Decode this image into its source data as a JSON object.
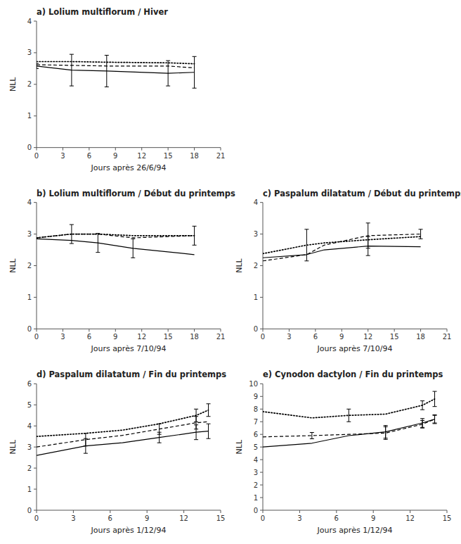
{
  "chart_data": [
    {
      "type": "line",
      "title": "a) Lolium multiflorum / Hiver",
      "xlabel": "Jours après 26/6/94",
      "ylabel": "NLL",
      "xlim": [
        0,
        21
      ],
      "ylim": [
        0,
        4
      ],
      "xticks": [
        0,
        3,
        6,
        9,
        12,
        15,
        18,
        21
      ],
      "yticks": [
        0,
        1,
        2,
        3,
        4
      ],
      "x": [
        0,
        4,
        8,
        15,
        18
      ],
      "series": [
        {
          "values": [
            2.58,
            2.45,
            2.42,
            2.35,
            2.38
          ],
          "errors": [
            0.08,
            0.5,
            0.5,
            0.4,
            0.5
          ],
          "line_style": "solid",
          "color": "#000000"
        },
        {
          "values": [
            2.62,
            2.6,
            2.58,
            2.58,
            2.52
          ],
          "errors": [
            0.0,
            0.0,
            0.0,
            0.0,
            0.0
          ],
          "line_style": "dashed",
          "color": "#000000"
        },
        {
          "values": [
            2.72,
            2.72,
            2.7,
            2.68,
            2.65
          ],
          "errors": [
            0.0,
            0.0,
            0.0,
            0.0,
            0.0
          ],
          "line_style": "dotted",
          "color": "#000000"
        }
      ]
    },
    {
      "type": "line",
      "title": "b) Lolium multiflorum / Début du printemps",
      "xlabel": "Jours après 7/10/94",
      "ylabel": "NLL",
      "xlim": [
        0,
        21
      ],
      "ylim": [
        0,
        4
      ],
      "xticks": [
        0,
        3,
        6,
        9,
        12,
        15,
        18,
        21
      ],
      "yticks": [
        0,
        1,
        2,
        3,
        4
      ],
      "x": [
        0,
        4,
        7,
        11,
        18
      ],
      "series": [
        {
          "values": [
            2.85,
            2.8,
            2.72,
            2.55,
            2.35
          ],
          "errors": [
            0.0,
            0.0,
            0.3,
            0.3,
            0.0
          ],
          "line_style": "solid",
          "color": "#000000"
        },
        {
          "values": [
            2.88,
            3.0,
            3.0,
            2.88,
            2.95
          ],
          "errors": [
            0.0,
            0.3,
            0.0,
            0.0,
            0.3
          ],
          "line_style": "dashed",
          "color": "#000000"
        },
        {
          "values": [
            2.88,
            3.0,
            3.0,
            2.95,
            2.95
          ],
          "errors": [
            0.0,
            0.0,
            0.0,
            0.0,
            0.0
          ],
          "line_style": "dotted",
          "color": "#000000"
        }
      ]
    },
    {
      "type": "line",
      "title": "c) Paspalum dilatatum / Début du printemps",
      "xlabel": "Jours après 7/10/94",
      "ylabel": "NLL",
      "xlim": [
        0,
        21
      ],
      "ylim": [
        0,
        4
      ],
      "xticks": [
        0,
        3,
        6,
        9,
        12,
        15,
        18,
        21
      ],
      "yticks": [
        0,
        1,
        2,
        3,
        4
      ],
      "x": [
        0,
        5,
        7,
        12,
        18
      ],
      "series": [
        {
          "values": [
            2.25,
            2.35,
            2.5,
            2.62,
            2.6
          ],
          "errors": [
            0.0,
            0.0,
            0.0,
            0.3,
            0.0
          ],
          "line_style": "solid",
          "color": "#000000"
        },
        {
          "values": [
            2.15,
            2.35,
            2.65,
            2.95,
            3.0
          ],
          "errors": [
            0.0,
            0.0,
            0.0,
            0.4,
            0.15
          ],
          "line_style": "dashed",
          "color": "#000000"
        },
        {
          "values": [
            2.38,
            2.65,
            2.72,
            2.82,
            2.92
          ],
          "errors": [
            0.0,
            0.5,
            0.0,
            0.0,
            0.0
          ],
          "line_style": "dotted",
          "color": "#000000"
        }
      ]
    },
    {
      "type": "line",
      "title": "d) Paspalum dilatatum / Fin du printemps",
      "xlabel": "Jours après 1/12/94",
      "ylabel": "NLL",
      "xlim": [
        0,
        15
      ],
      "ylim": [
        0,
        6
      ],
      "xticks": [
        0,
        3,
        6,
        9,
        12,
        15
      ],
      "yticks": [
        0,
        1,
        2,
        3,
        4,
        5,
        6
      ],
      "x": [
        0,
        4,
        7,
        10,
        13,
        14
      ],
      "series": [
        {
          "values": [
            2.6,
            3.05,
            3.2,
            3.45,
            3.7,
            3.75
          ],
          "errors": [
            0.0,
            0.35,
            0.0,
            0.25,
            0.35,
            0.35
          ],
          "line_style": "solid",
          "color": "#000000"
        },
        {
          "values": [
            3.0,
            3.35,
            3.55,
            3.85,
            4.15,
            4.2
          ],
          "errors": [
            0.0,
            0.3,
            0.0,
            0.25,
            0.3,
            0.0
          ],
          "line_style": "dashed",
          "color": "#000000"
        },
        {
          "values": [
            3.5,
            3.65,
            3.8,
            4.1,
            4.5,
            4.75
          ],
          "errors": [
            0.0,
            0.0,
            0.0,
            0.0,
            0.3,
            0.3
          ],
          "line_style": "dotted",
          "color": "#000000"
        }
      ]
    },
    {
      "type": "line",
      "title": "e) Cynodon dactylon / Fin du printemps",
      "xlabel": "Jours après 1/12/94",
      "ylabel": "NLL",
      "xlim": [
        0,
        15
      ],
      "ylim": [
        0,
        10
      ],
      "xticks": [
        0,
        3,
        6,
        9,
        12,
        15
      ],
      "yticks": [
        0,
        1,
        2,
        3,
        4,
        5,
        6,
        7,
        8,
        9,
        10
      ],
      "x": [
        0,
        4,
        7,
        10,
        13,
        14
      ],
      "series": [
        {
          "values": [
            5.0,
            5.3,
            5.9,
            6.2,
            6.9,
            7.2
          ],
          "errors": [
            0.0,
            0.0,
            0.0,
            0.5,
            0.35,
            0.35
          ],
          "line_style": "solid",
          "color": "#000000"
        },
        {
          "values": [
            5.8,
            5.9,
            6.0,
            6.1,
            6.8,
            7.2
          ],
          "errors": [
            0.0,
            0.25,
            0.0,
            0.5,
            0.3,
            0.3
          ],
          "line_style": "dashed",
          "color": "#000000"
        },
        {
          "values": [
            7.8,
            7.3,
            7.5,
            7.6,
            8.3,
            8.8
          ],
          "errors": [
            0.0,
            0.0,
            0.5,
            0.0,
            0.35,
            0.6
          ],
          "line_style": "dotted",
          "color": "#000000"
        }
      ]
    }
  ]
}
